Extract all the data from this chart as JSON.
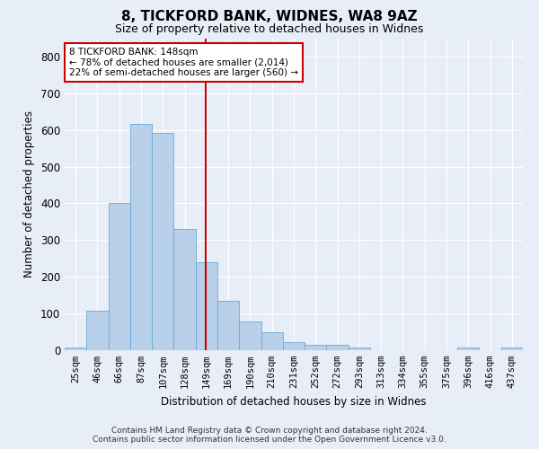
{
  "title": "8, TICKFORD BANK, WIDNES, WA8 9AZ",
  "subtitle": "Size of property relative to detached houses in Widnes",
  "xlabel": "Distribution of detached houses by size in Widnes",
  "ylabel": "Number of detached properties",
  "categories": [
    "25sqm",
    "46sqm",
    "66sqm",
    "87sqm",
    "107sqm",
    "128sqm",
    "149sqm",
    "169sqm",
    "190sqm",
    "210sqm",
    "231sqm",
    "252sqm",
    "272sqm",
    "293sqm",
    "313sqm",
    "334sqm",
    "355sqm",
    "375sqm",
    "396sqm",
    "416sqm",
    "437sqm"
  ],
  "values": [
    8,
    107,
    402,
    617,
    592,
    330,
    240,
    135,
    78,
    50,
    22,
    15,
    15,
    8,
    0,
    0,
    0,
    0,
    8,
    0,
    8
  ],
  "bar_color": "#b8d0ea",
  "bar_edge_color": "#6aaad4",
  "background_color": "#e8eef8",
  "grid_color": "#ffffff",
  "property_label": "8 TICKFORD BANK: 148sqm",
  "annotation_line1": "← 78% of detached houses are smaller (2,014)",
  "annotation_line2": "22% of semi-detached houses are larger (560) →",
  "vline_color": "#cc0000",
  "annotation_box_color": "#cc0000",
  "ylim": [
    0,
    850
  ],
  "yticks": [
    0,
    100,
    200,
    300,
    400,
    500,
    600,
    700,
    800
  ],
  "footer_line1": "Contains HM Land Registry data © Crown copyright and database right 2024.",
  "footer_line2": "Contains public sector information licensed under the Open Government Licence v3.0."
}
